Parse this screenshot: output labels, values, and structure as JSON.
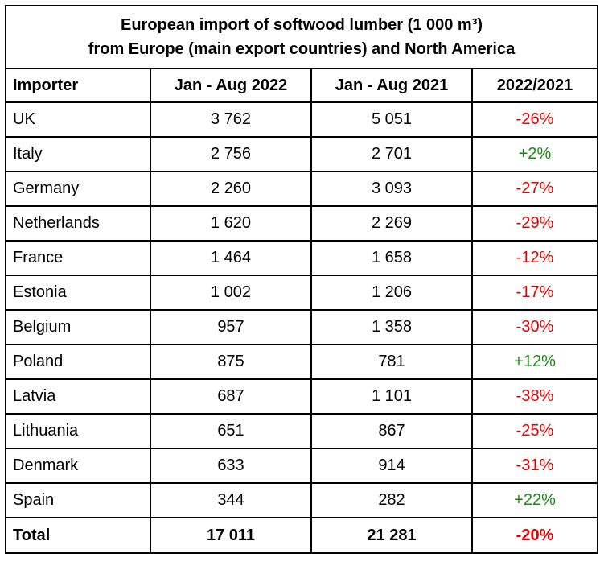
{
  "title": {
    "line1": "European import of softwood lumber (1 000 m³)",
    "line2": "from Europe (main export countries) and North America"
  },
  "headers": [
    "Importer",
    "Jan - Aug 2022",
    "Jan - Aug 2021",
    "2022/2021"
  ],
  "rows": [
    {
      "importer": "UK",
      "y2022": "3 762",
      "y2021": "5 051",
      "change": "-26%",
      "trend": "neg"
    },
    {
      "importer": "Italy",
      "y2022": "2 756",
      "y2021": "2 701",
      "change": "+2%",
      "trend": "pos"
    },
    {
      "importer": "Germany",
      "y2022": "2 260",
      "y2021": "3 093",
      "change": "-27%",
      "trend": "neg"
    },
    {
      "importer": "Netherlands",
      "y2022": "1 620",
      "y2021": "2 269",
      "change": "-29%",
      "trend": "neg"
    },
    {
      "importer": "France",
      "y2022": "1 464",
      "y2021": "1 658",
      "change": "-12%",
      "trend": "neg"
    },
    {
      "importer": "Estonia",
      "y2022": "1 002",
      "y2021": "1 206",
      "change": "-17%",
      "trend": "neg"
    },
    {
      "importer": "Belgium",
      "y2022": "957",
      "y2021": "1 358",
      "change": "-30%",
      "trend": "neg"
    },
    {
      "importer": "Poland",
      "y2022": "875",
      "y2021": "781",
      "change": "+12%",
      "trend": "pos"
    },
    {
      "importer": "Latvia",
      "y2022": "687",
      "y2021": "1 101",
      "change": "-38%",
      "trend": "neg"
    },
    {
      "importer": "Lithuania",
      "y2022": "651",
      "y2021": "867",
      "change": "-25%",
      "trend": "neg"
    },
    {
      "importer": "Denmark",
      "y2022": "633",
      "y2021": "914",
      "change": "-31%",
      "trend": "neg"
    },
    {
      "importer": "Spain",
      "y2022": "344",
      "y2021": "282",
      "change": "+22%",
      "trend": "pos"
    }
  ],
  "total": {
    "importer": "Total",
    "y2022": "17 011",
    "y2021": "21 281",
    "change": "-20%",
    "trend": "neg"
  },
  "colors": {
    "negative": "#e60000",
    "positive": "#148c14"
  }
}
